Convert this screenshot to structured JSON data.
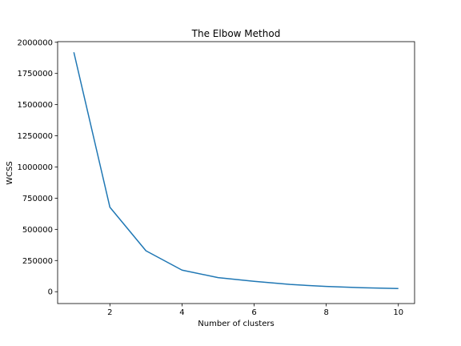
{
  "chart_data": {
    "type": "line",
    "title": "The Elbow Method",
    "xlabel": "Number of clusters",
    "ylabel": "WCSS",
    "x": [
      1,
      2,
      3,
      4,
      5,
      6,
      7,
      8,
      9,
      10
    ],
    "series": [
      {
        "values": [
          1920000,
          677000,
          328000,
          173000,
          113000,
          83000,
          58000,
          42000,
          32000,
          25000
        ],
        "color": "#1f77b4"
      }
    ],
    "xlim": [
      0.55,
      10.45
    ],
    "ylim": [
      -95000,
      2005000
    ],
    "xticks": [
      2,
      4,
      6,
      8,
      10
    ],
    "xtick_labels": [
      "2",
      "4",
      "6",
      "8",
      "10"
    ],
    "yticks": [
      0,
      250000,
      500000,
      750000,
      1000000,
      1250000,
      1500000,
      1750000,
      2000000
    ],
    "ytick_labels": [
      "0",
      "250000",
      "500000",
      "750000",
      "1000000",
      "1250000",
      "1500000",
      "1750000",
      "2000000"
    ],
    "grid": false,
    "legend": "none"
  }
}
